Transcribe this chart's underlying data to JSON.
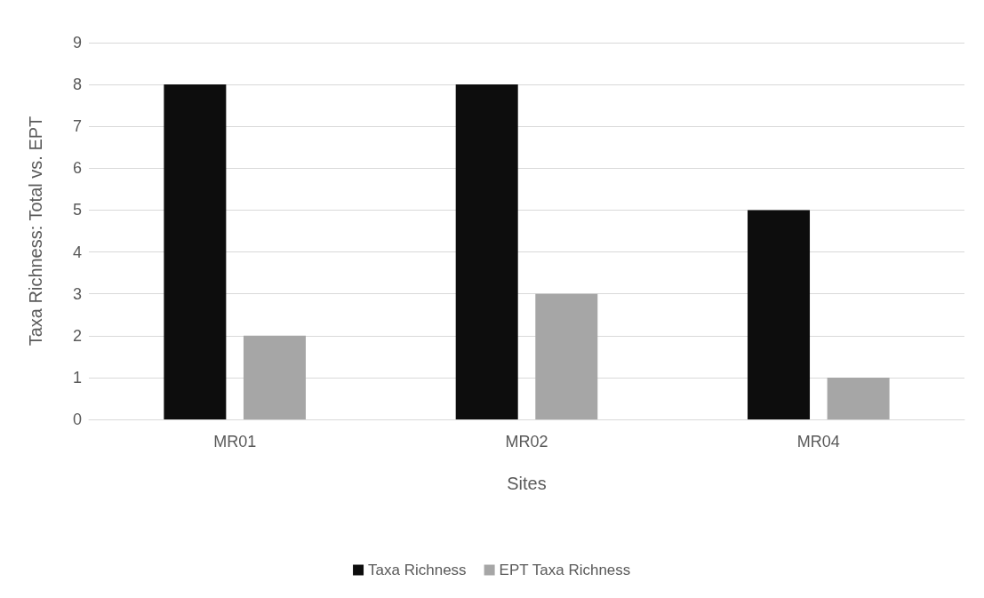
{
  "chart_data": {
    "type": "bar",
    "xlabel": "Sites",
    "ylabel": "Taxa Richness: Total vs. EPT",
    "categories": [
      "MR01",
      "MR02",
      "MR04"
    ],
    "series": [
      {
        "name": "Taxa Richness",
        "color": "#0d0d0d",
        "values": [
          8,
          8,
          5
        ]
      },
      {
        "name": "EPT Taxa Richness",
        "color": "#a6a6a6",
        "values": [
          2,
          3,
          1
        ]
      }
    ],
    "ylim": [
      0,
      9
    ],
    "yticks": [
      0,
      1,
      2,
      3,
      4,
      5,
      6,
      7,
      8,
      9
    ],
    "grid": "y",
    "legend": "bottom"
  }
}
